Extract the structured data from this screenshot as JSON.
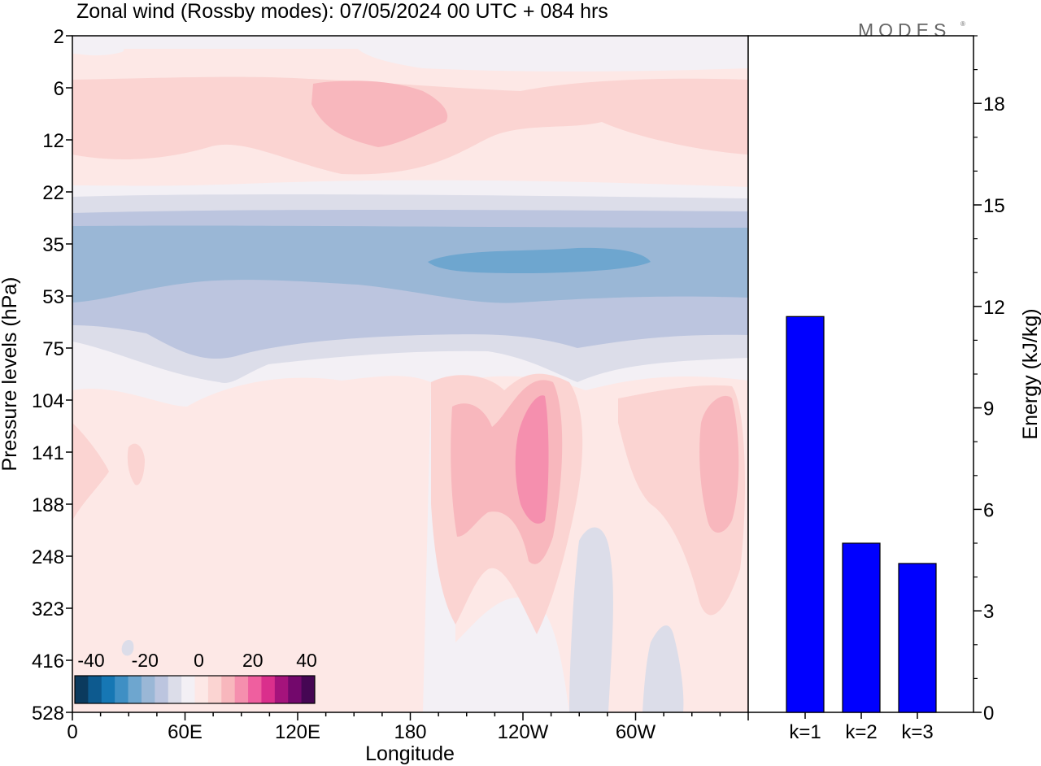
{
  "title": "Zonal wind (Rossby modes):  07/05/2024  00 UTC  + 084 hrs",
  "logo": "MODES",
  "logo_mark": "®",
  "chart_data": [
    {
      "type": "heatmap",
      "variable": "Zonal wind",
      "xlabel": "Longitude",
      "ylabel": "Pressure levels (hPa)",
      "x_ticks": [
        "0",
        "60E",
        "120E",
        "180",
        "120W",
        "60W"
      ],
      "y_ticks": [
        "2",
        "6",
        "12",
        "22",
        "35",
        "53",
        "75",
        "104",
        "141",
        "188",
        "248",
        "323",
        "416",
        "528"
      ],
      "colorbar": {
        "tick_labels": [
          "-40",
          "-20",
          "0",
          "20",
          "40"
        ],
        "colors": [
          "#0b3a5e",
          "#0d5a8f",
          "#1677b4",
          "#3f8fc4",
          "#6ea6cf",
          "#9ab7d6",
          "#bcc5df",
          "#dcdde9",
          "#f3f0f5",
          "#fde8e6",
          "#fbd4d2",
          "#f8b7bd",
          "#f58fae",
          "#ef5f9f",
          "#da2f8c",
          "#a5137c",
          "#73086c",
          "#450653"
        ]
      },
      "features": [
        {
          "label": "easterly jet core",
          "levels": "35-53 hPa",
          "longitudes": "full circle",
          "approx_value": -15
        },
        {
          "label": "strongest easterlies",
          "levels": "35-53 hPa",
          "longitudes": "about 190E-250E",
          "approx_value": -20
        },
        {
          "label": "upper westerlies",
          "levels": "6-12 hPa",
          "longitudes": "about 100E-170E",
          "approx_value": 12
        },
        {
          "label": "westerly maximum",
          "levels": "104-188 hPa",
          "longitudes": "about 230E-240E",
          "approx_value": 18
        },
        {
          "label": "westerly maximum",
          "levels": "104-188 hPa",
          "longitudes": "about 330E-345E",
          "approx_value": 12
        },
        {
          "label": "weak easterlies",
          "levels": "248-528 hPa",
          "longitudes": "about 270E and 310E",
          "approx_value": -3
        }
      ]
    },
    {
      "type": "bar",
      "categories": [
        "k=1",
        "k=2",
        "k=3"
      ],
      "values": [
        11.7,
        5.0,
        4.4
      ],
      "ylabel": "Energy (kJ/kg)",
      "y_ticks": [
        "0",
        "3",
        "6",
        "9",
        "12",
        "15",
        "18"
      ],
      "ylim": [
        0,
        20
      ],
      "bar_color": "#0000ff"
    }
  ]
}
